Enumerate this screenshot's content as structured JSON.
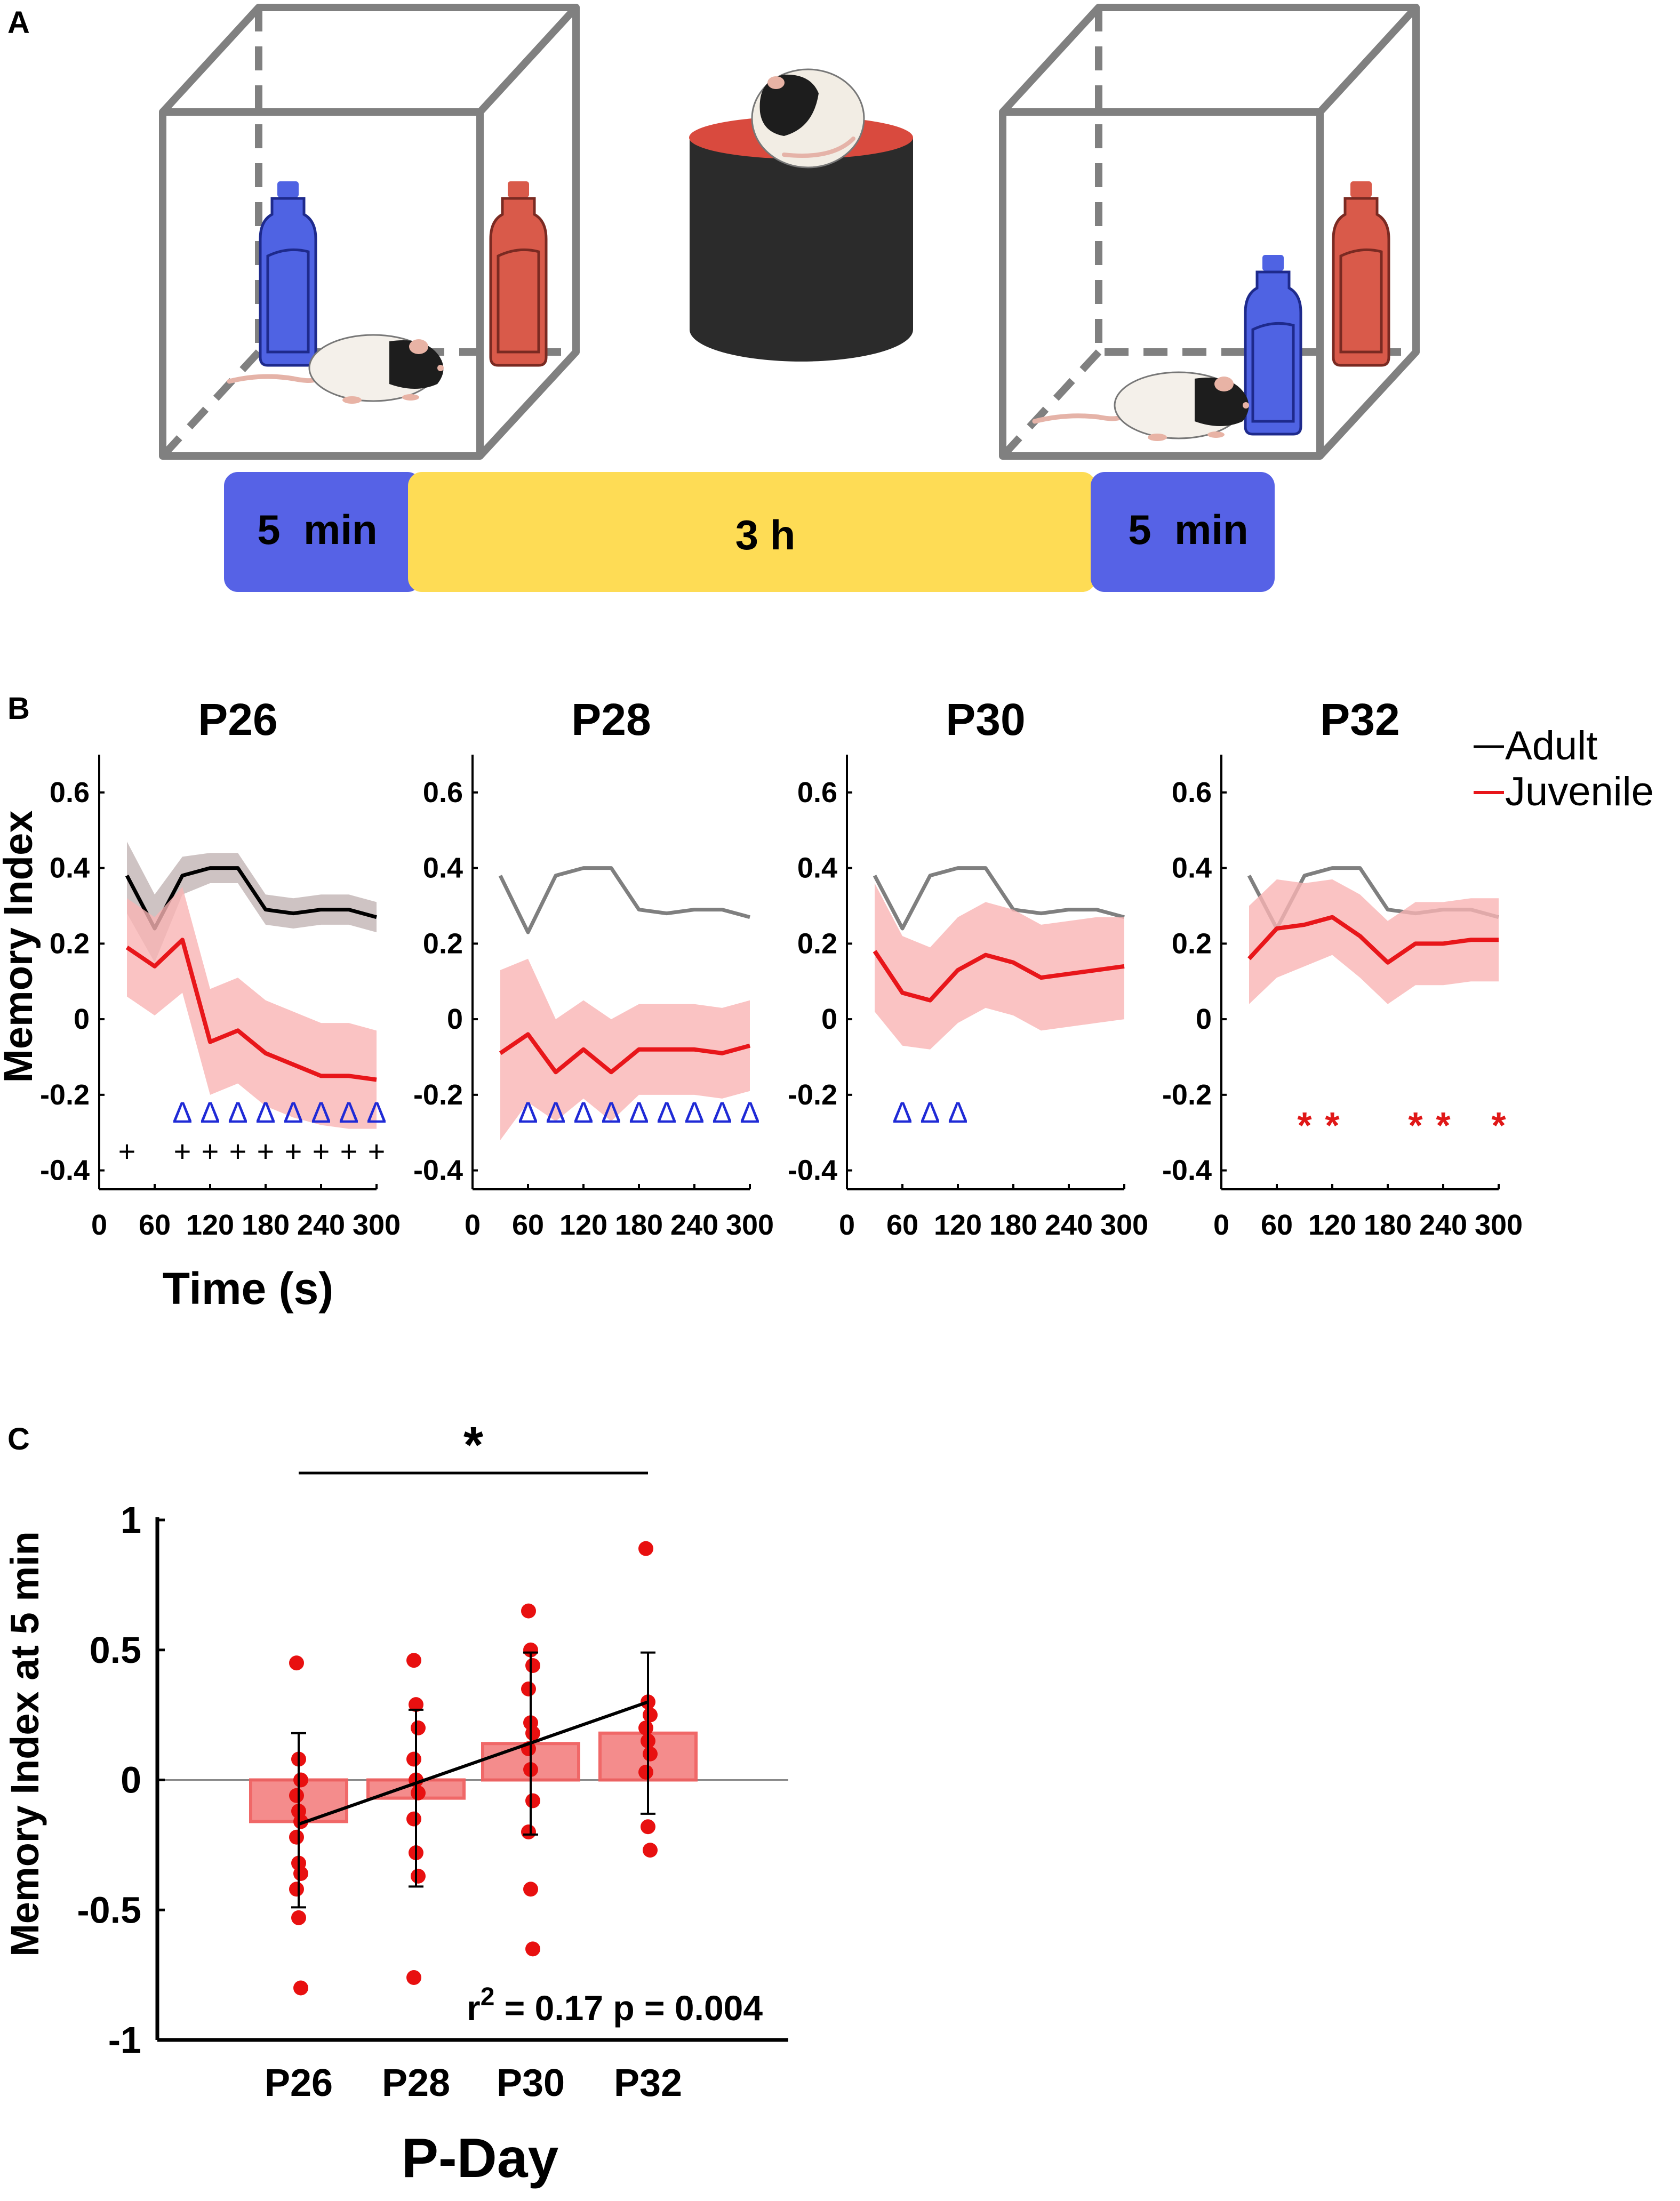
{
  "panel_labels": {
    "a": "A",
    "b": "B",
    "c": "C"
  },
  "panel_a": {
    "timeline": [
      {
        "label": "5  min",
        "color": "#5662e6"
      },
      {
        "label": "3 h",
        "color": "#fedc55"
      },
      {
        "label": "5  min",
        "color": "#5662e6"
      }
    ],
    "colors": {
      "cube": "#808080",
      "blue_bottle": "#4f63e3",
      "red_bottle": "#d95a4a",
      "platform": "#2b2b2b",
      "platform_top": "#d94a3e"
    }
  },
  "panel_b": {
    "y_axis_label": "Memory Index",
    "x_axis_label": "Time (s)",
    "legend": [
      {
        "label": "Adult",
        "color": "#000000"
      },
      {
        "label": "Juvenile",
        "color": "#e8161a"
      }
    ],
    "colors": {
      "adult_band": "#c9bcbc",
      "juvenile_band": "#f9b4b4",
      "triangle": "#1f2ad6",
      "plus": "#000000",
      "star": "#e01818"
    }
  },
  "chart_data": [
    {
      "type": "line",
      "title": "P26",
      "xlabel": "Time (s)",
      "ylabel": "Memory Index",
      "xlim": [
        0,
        300
      ],
      "ylim": [
        -0.45,
        0.7
      ],
      "xticks": [
        "0",
        "60",
        "120",
        "180",
        "240",
        "300"
      ],
      "yticks": [
        "0.6",
        "0.4",
        "0.2",
        "0",
        "-0.2",
        "-0.4"
      ],
      "x": [
        30,
        60,
        90,
        120,
        150,
        180,
        210,
        240,
        270,
        300
      ],
      "series": [
        {
          "name": "Adult",
          "values": [
            0.38,
            0.24,
            0.38,
            0.4,
            0.4,
            0.29,
            0.28,
            0.29,
            0.29,
            0.27
          ],
          "lower": [
            0.28,
            0.15,
            0.33,
            0.36,
            0.36,
            0.25,
            0.24,
            0.25,
            0.25,
            0.23
          ],
          "upper": [
            0.47,
            0.33,
            0.43,
            0.44,
            0.44,
            0.33,
            0.32,
            0.33,
            0.33,
            0.31
          ]
        },
        {
          "name": "Juvenile",
          "values": [
            0.19,
            0.14,
            0.21,
            -0.06,
            -0.03,
            -0.09,
            -0.12,
            -0.15,
            -0.15,
            -0.16
          ],
          "lower": [
            0.06,
            0.01,
            0.07,
            -0.2,
            -0.17,
            -0.23,
            -0.26,
            -0.28,
            -0.29,
            -0.29
          ],
          "upper": [
            0.32,
            0.27,
            0.35,
            0.08,
            0.11,
            0.05,
            0.02,
            -0.01,
            -0.01,
            -0.03
          ]
        }
      ],
      "triangle_marker": "Δ",
      "triangles_at": [
        90,
        120,
        150,
        180,
        210,
        240,
        270,
        300
      ],
      "plus_marker": "+",
      "plus_at": [
        30,
        90,
        120,
        150,
        180,
        210,
        240,
        270,
        300
      ],
      "star_marker": "*",
      "stars_at": []
    },
    {
      "type": "line",
      "title": "P28",
      "xlabel": "",
      "ylabel": "",
      "xlim": [
        0,
        300
      ],
      "ylim": [
        -0.45,
        0.7
      ],
      "xticks": [
        "0",
        "60",
        "120",
        "180",
        "240",
        "300"
      ],
      "yticks": [
        "0.6",
        "0.4",
        "0.2",
        "0",
        "-0.2",
        "-0.4"
      ],
      "x": [
        30,
        60,
        90,
        120,
        150,
        180,
        210,
        240,
        270,
        300
      ],
      "series": [
        {
          "name": "Adult",
          "values": [
            0.38,
            0.23,
            0.38,
            0.4,
            0.4,
            0.29,
            0.28,
            0.29,
            0.29,
            0.27
          ]
        },
        {
          "name": "Juvenile",
          "values": [
            -0.09,
            -0.04,
            -0.14,
            -0.08,
            -0.14,
            -0.08,
            -0.08,
            -0.08,
            -0.09,
            -0.07
          ],
          "lower": [
            -0.32,
            -0.22,
            -0.27,
            -0.21,
            -0.27,
            -0.2,
            -0.2,
            -0.2,
            -0.21,
            -0.19
          ],
          "upper": [
            0.13,
            0.16,
            0.0,
            0.05,
            0.0,
            0.04,
            0.04,
            0.04,
            0.03,
            0.05
          ]
        }
      ],
      "triangle_marker": "Δ",
      "triangles_at": [
        60,
        90,
        120,
        150,
        180,
        210,
        240,
        270,
        300
      ],
      "plus_marker": "+",
      "plus_at": [],
      "star_marker": "*",
      "stars_at": []
    },
    {
      "type": "line",
      "title": "P30",
      "xlabel": "",
      "ylabel": "",
      "xlim": [
        0,
        300
      ],
      "ylim": [
        -0.45,
        0.7
      ],
      "xticks": [
        "0",
        "60",
        "120",
        "180",
        "240",
        "300"
      ],
      "yticks": [
        "0.6",
        "0.4",
        "0.2",
        "0",
        "-0.2",
        "-0.4"
      ],
      "x": [
        30,
        60,
        90,
        120,
        150,
        180,
        210,
        240,
        270,
        300
      ],
      "series": [
        {
          "name": "Adult",
          "values": [
            0.38,
            0.24,
            0.38,
            0.4,
            0.4,
            0.29,
            0.28,
            0.29,
            0.29,
            0.27
          ]
        },
        {
          "name": "Juvenile",
          "values": [
            0.18,
            0.07,
            0.05,
            0.13,
            0.17,
            0.15,
            0.11,
            0.12,
            0.13,
            0.14
          ],
          "lower": [
            0.02,
            -0.07,
            -0.08,
            -0.01,
            0.03,
            0.01,
            -0.03,
            -0.02,
            -0.01,
            0.0
          ],
          "upper": [
            0.36,
            0.22,
            0.19,
            0.27,
            0.31,
            0.29,
            0.25,
            0.26,
            0.27,
            0.27
          ]
        }
      ],
      "triangle_marker": "Δ",
      "triangles_at": [
        60,
        90,
        120
      ],
      "plus_marker": "+",
      "plus_at": [],
      "star_marker": "*",
      "stars_at": []
    },
    {
      "type": "line",
      "title": "P32",
      "xlabel": "",
      "ylabel": "",
      "xlim": [
        0,
        300
      ],
      "ylim": [
        -0.45,
        0.7
      ],
      "xticks": [
        "0",
        "60",
        "120",
        "180",
        "240",
        "300"
      ],
      "yticks": [
        "0.6",
        "0.4",
        "0.2",
        "0",
        "-0.2",
        "-0.4"
      ],
      "x": [
        30,
        60,
        90,
        120,
        150,
        180,
        210,
        240,
        270,
        300
      ],
      "series": [
        {
          "name": "Adult",
          "values": [
            0.38,
            0.24,
            0.38,
            0.4,
            0.4,
            0.29,
            0.28,
            0.29,
            0.29,
            0.27
          ]
        },
        {
          "name": "Juvenile",
          "values": [
            0.16,
            0.24,
            0.25,
            0.27,
            0.22,
            0.15,
            0.2,
            0.2,
            0.21,
            0.21
          ],
          "lower": [
            0.04,
            0.11,
            0.14,
            0.17,
            0.11,
            0.04,
            0.09,
            0.09,
            0.1,
            0.1
          ],
          "upper": [
            0.3,
            0.37,
            0.36,
            0.37,
            0.33,
            0.26,
            0.31,
            0.31,
            0.32,
            0.32
          ]
        }
      ],
      "triangle_marker": "Δ",
      "triangles_at": [],
      "plus_marker": "+",
      "plus_at": [],
      "star_marker": "*",
      "stars_at": [
        90,
        120,
        210,
        240,
        300
      ]
    },
    {
      "type": "bar",
      "title": "",
      "xlabel": "P-Day",
      "ylabel": "Memory Index at 5 min",
      "ylim": [
        -1,
        1
      ],
      "yticks": [
        "1",
        "0.5",
        "0",
        "-0.5",
        "-1"
      ],
      "categories": [
        "P26",
        "P28",
        "P30",
        "P32"
      ],
      "values": [
        -0.16,
        -0.07,
        0.14,
        0.18
      ],
      "errors": [
        {
          "lower": -0.49,
          "upper": 0.18
        },
        {
          "lower": -0.41,
          "upper": 0.27
        },
        {
          "lower": -0.21,
          "upper": 0.49
        },
        {
          "lower": -0.13,
          "upper": 0.49
        }
      ],
      "points": [
        [
          0.45,
          0.08,
          0.0,
          -0.06,
          -0.12,
          -0.16,
          -0.22,
          -0.32,
          -0.36,
          -0.42,
          -0.53,
          -0.8
        ],
        [
          0.46,
          0.29,
          0.2,
          0.08,
          0.0,
          -0.05,
          -0.15,
          -0.28,
          -0.37,
          -0.76
        ],
        [
          0.65,
          0.5,
          0.44,
          0.35,
          0.22,
          0.18,
          0.12,
          0.04,
          -0.08,
          -0.2,
          -0.42,
          -0.65
        ],
        [
          0.89,
          0.3,
          0.25,
          0.2,
          0.15,
          0.1,
          0.03,
          -0.18,
          -0.27
        ]
      ],
      "regression": {
        "from": -0.17,
        "to": 0.3
      },
      "significance": {
        "label": "*",
        "from": "P26",
        "to": "P32"
      },
      "annotation": {
        "r_label": "r",
        "r_power": "2",
        "text": " = 0.17   p = 0.004"
      },
      "colors": {
        "bar": "#f48686",
        "bar_edge": "#f06060",
        "point": "#e81010"
      }
    }
  ]
}
